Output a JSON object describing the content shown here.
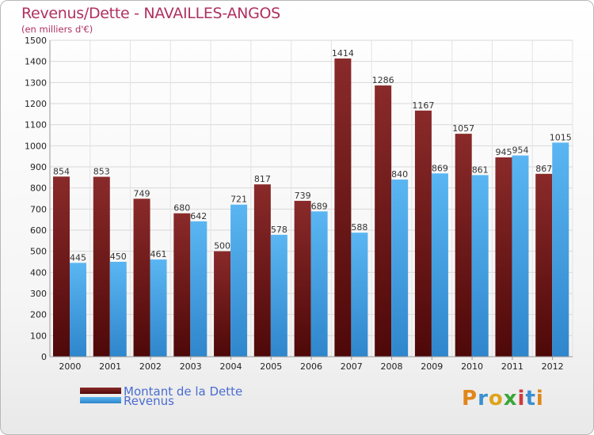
{
  "header": {
    "title": "Revenus/Dette - NAVAILLES-ANGOS",
    "subtitle": "(en milliers d'€)"
  },
  "chart_data": {
    "type": "bar",
    "title": "Revenus/Dette - NAVAILLES-ANGOS",
    "subtitle": "(en milliers d'€)",
    "xlabel": "",
    "ylabel": "",
    "categories": [
      "2000",
      "2001",
      "2002",
      "2003",
      "2004",
      "2005",
      "2006",
      "2007",
      "2008",
      "2009",
      "2010",
      "2011",
      "2012"
    ],
    "series": [
      {
        "name": "Montant de la Dette",
        "values": [
          854,
          853,
          749,
          680,
          500,
          817,
          739,
          1414,
          1286,
          1167,
          1057,
          945,
          867
        ],
        "color": "#7a1c1c"
      },
      {
        "name": "Revenus",
        "values": [
          445,
          450,
          461,
          642,
          721,
          578,
          689,
          588,
          840,
          869,
          861,
          954,
          1015
        ],
        "color": "#4aa3e6"
      }
    ],
    "ylim": [
      0,
      1500
    ],
    "yticks": [
      0,
      100,
      200,
      300,
      400,
      500,
      600,
      700,
      800,
      900,
      1000,
      1100,
      1200,
      1300,
      1400,
      1500
    ],
    "grid": true,
    "legend_position": "bottom-left"
  },
  "legend": {
    "items": [
      {
        "label": "Montant de la Dette",
        "color": "#7a1c1c"
      },
      {
        "label": "Revenus",
        "color": "#4aa3e6"
      }
    ]
  },
  "logo": {
    "text": "Proxiti",
    "colors": [
      "#e0861a",
      "#3a8fd0",
      "#e0a21a",
      "#3aa63a",
      "#d03a3a",
      "#3a8fd0",
      "#e0861a"
    ]
  }
}
